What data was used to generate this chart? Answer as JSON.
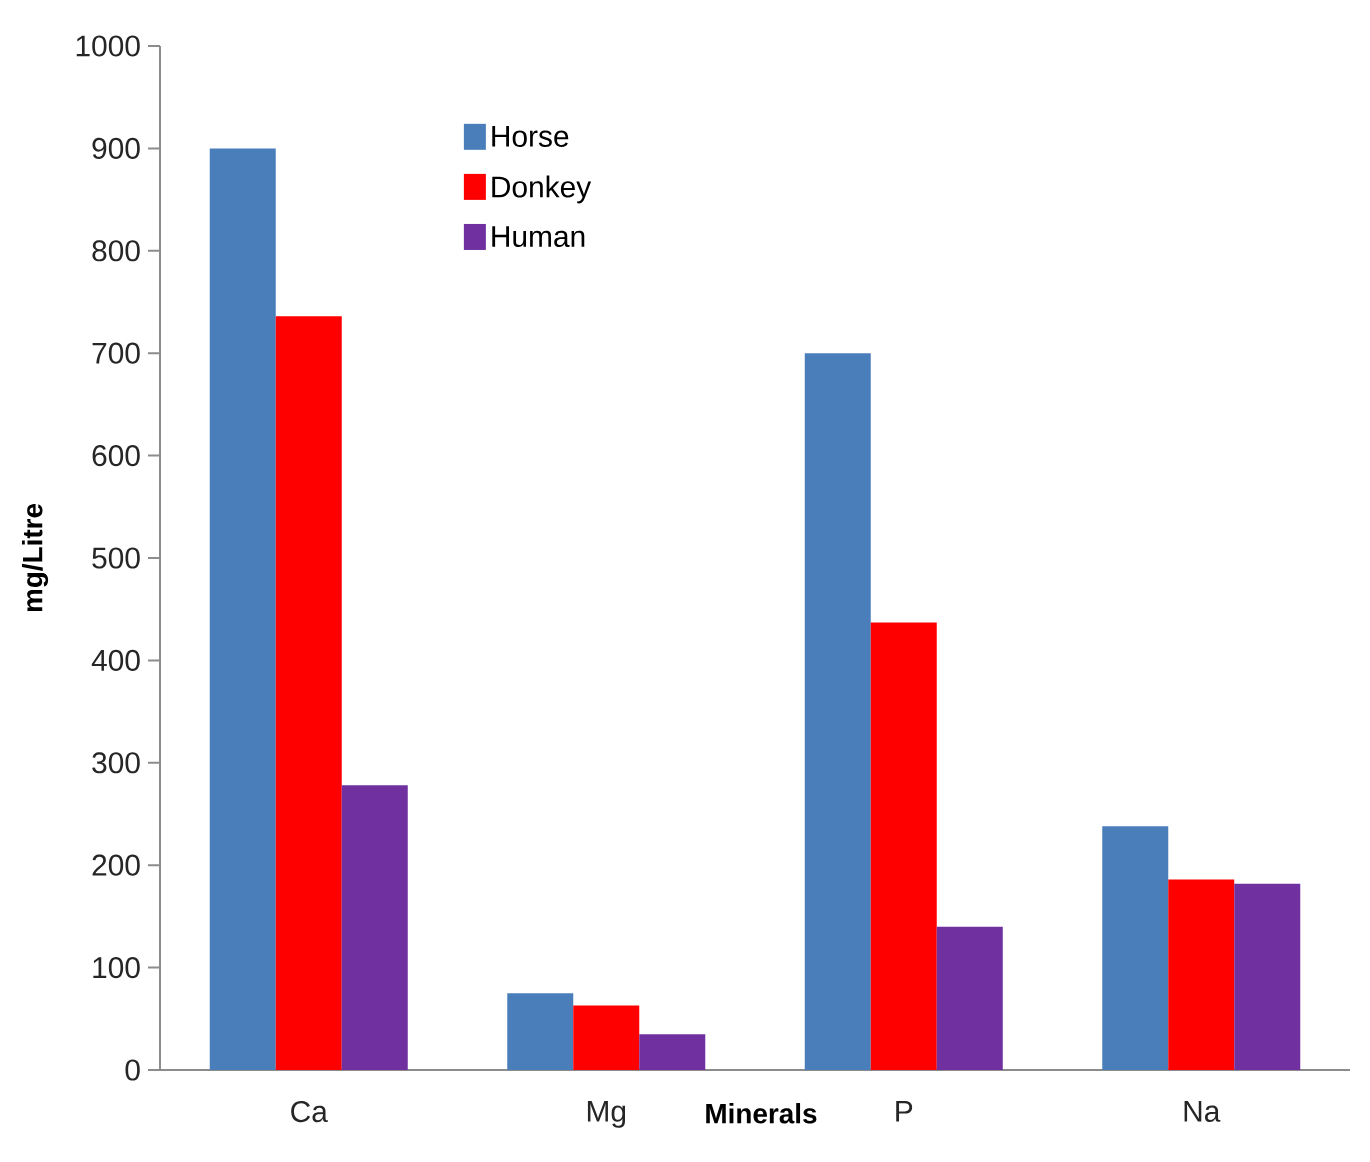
{
  "chart_data": {
    "type": "bar",
    "xlabel": "Minerals",
    "ylabel": "mg/Litre",
    "categories": [
      "Ca",
      "Mg",
      "P",
      "Na"
    ],
    "series": [
      {
        "name": "Horse",
        "color": "#4a7ebb",
        "values": [
          900,
          75,
          700,
          238
        ]
      },
      {
        "name": "Donkey",
        "color": "#ff0000",
        "values": [
          736,
          63,
          437,
          186
        ]
      },
      {
        "name": "Human",
        "color": "#7030a0",
        "values": [
          278,
          35,
          140,
          182
        ]
      }
    ],
    "ylim": [
      0,
      1000
    ],
    "yticks": [
      0,
      100,
      200,
      300,
      400,
      500,
      600,
      700,
      800,
      900,
      1000
    ],
    "grid": false,
    "legend": "top left"
  }
}
